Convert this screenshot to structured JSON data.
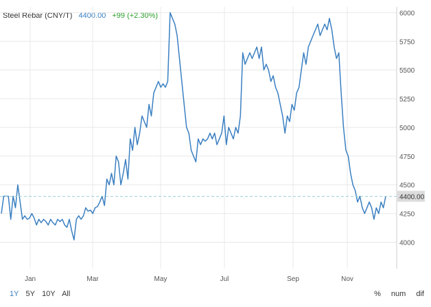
{
  "header": {
    "title": "Steel Rebar (CNY/T)",
    "price": "4400.00",
    "change": "+99 (+2.30%)"
  },
  "range_buttons": [
    "1Y",
    "5Y",
    "10Y",
    "All"
  ],
  "active_range": "1Y",
  "tools": [
    "%",
    "num",
    "dif"
  ],
  "colors": {
    "line": "#3a7fc1",
    "grid": "#e8e8e8",
    "current_price_line": "#9ed0d6",
    "current_price_box": "#dcdcdc",
    "change_positive": "#2ca02c"
  },
  "chart_data": {
    "type": "line",
    "title": "Steel Rebar (CNY/T)",
    "xlabel": "",
    "ylabel": "",
    "x_tick_labels": [
      "Jan",
      "Mar",
      "May",
      "Jul",
      "Sep",
      "Nov"
    ],
    "y_tick_labels": [
      "4000",
      "4250",
      "4500",
      "4750",
      "5000",
      "5250",
      "5500",
      "5750",
      "6000"
    ],
    "ylim": [
      3770,
      6050
    ],
    "current_value": 4400,
    "current_value_label": "4400.00",
    "grid": true,
    "y_axis_side": "right",
    "series": [
      {
        "values": [
          4250,
          4400,
          4400,
          4400,
          4200,
          4400,
          4300,
          4500,
          4350,
          4200,
          4230,
          4200,
          4210,
          4250,
          4210,
          4150,
          4200,
          4170,
          4200,
          4180,
          4150,
          4200,
          4170,
          4150,
          4200,
          4180,
          4200,
          4150,
          4130,
          4200,
          4100,
          4020,
          4200,
          4230,
          4200,
          4230,
          4300,
          4270,
          4280,
          4250,
          4300,
          4310,
          4350,
          4400,
          4320,
          4550,
          4500,
          4600,
          4500,
          4750,
          4700,
          4500,
          4600,
          4720,
          4550,
          4900,
          4800,
          5000,
          4850,
          4950,
          5100,
          5050,
          5000,
          5200,
          5100,
          5300,
          5350,
          5400,
          5350,
          5380,
          5350,
          5400,
          6000,
          5950,
          5900,
          5800,
          5600,
          5400,
          5200,
          5000,
          4950,
          4800,
          4750,
          4700,
          4900,
          4850,
          4900,
          4880,
          4900,
          4950,
          4900,
          4950,
          4850,
          4900,
          4950,
          5100,
          4850,
          5000,
          4950,
          4900,
          5000,
          4950,
          5100,
          5650,
          5550,
          5600,
          5650,
          5600,
          5650,
          5700,
          5600,
          5700,
          5500,
          5550,
          5500,
          5400,
          5450,
          5350,
          5300,
          5200,
          5100,
          4950,
          5100,
          5050,
          5200,
          5150,
          5300,
          5350,
          5500,
          5650,
          5550,
          5700,
          5750,
          5800,
          5850,
          5900,
          5800,
          5850,
          5900,
          5850,
          5950,
          5850,
          5700,
          5600,
          5650,
          5300,
          5000,
          4800,
          4750,
          4600,
          4500,
          4450,
          4350,
          4400,
          4300,
          4250,
          4300,
          4350,
          4300,
          4200,
          4300,
          4250,
          4350,
          4300,
          4400
        ]
      }
    ]
  }
}
